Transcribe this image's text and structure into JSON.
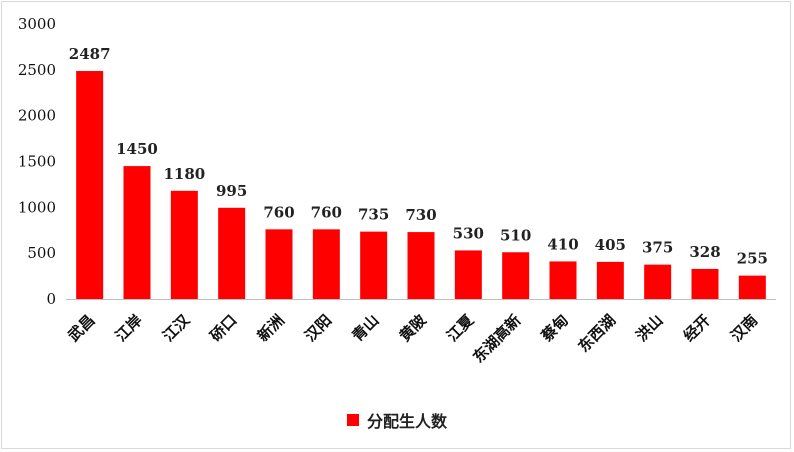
{
  "chart_data": {
    "type": "bar",
    "categories": [
      "武昌",
      "江岸",
      "江汉",
      "硚口",
      "新洲",
      "汉阳",
      "青山",
      "黄陂",
      "江夏",
      "东湖高新",
      "蔡甸",
      "东西湖",
      "洪山",
      "经开",
      "汉南"
    ],
    "series": [
      {
        "name": "分配生人数",
        "values": [
          2487,
          1450,
          1180,
          995,
          760,
          760,
          735,
          730,
          530,
          510,
          410,
          405,
          375,
          328,
          255
        ],
        "color": "#ff0000"
      }
    ],
    "yticks": [
      "0",
      "500",
      "1000",
      "1500",
      "2000",
      "2500",
      "3000"
    ],
    "ylim": [
      0,
      3000
    ],
    "grid": false,
    "legend_position": "bottom"
  }
}
